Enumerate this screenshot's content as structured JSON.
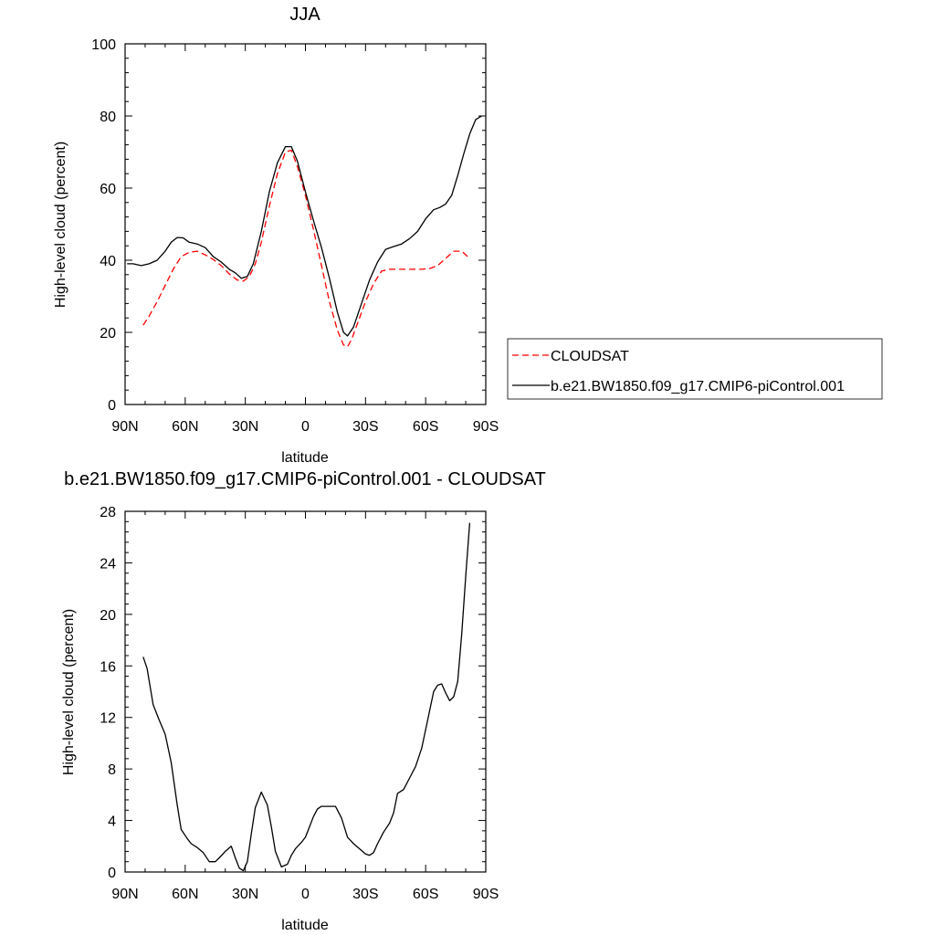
{
  "chart_data": [
    {
      "type": "line",
      "title": "JJA",
      "xlabel": "latitude",
      "ylabel": "High-level cloud (percent)",
      "xlim": [
        90,
        -90
      ],
      "ylim": [
        0,
        100
      ],
      "xticks": [
        90,
        60,
        30,
        0,
        -30,
        -60,
        -90
      ],
      "xtick_labels": [
        "90N",
        "60N",
        "30N",
        "0",
        "30S",
        "60S",
        "90S"
      ],
      "yticks": [
        0,
        20,
        40,
        60,
        80,
        100
      ],
      "ytick_labels": [
        "0",
        "20",
        "40",
        "60",
        "80",
        "100"
      ],
      "grid": false,
      "legend_position": "right",
      "series": [
        {
          "name": "CLOUDSAT",
          "color": "#ff0000",
          "dash": "dashed",
          "x": [
            81,
            78,
            74,
            70,
            66,
            62,
            58,
            54,
            50,
            46,
            42,
            38,
            34,
            31,
            28,
            25,
            22,
            18,
            14,
            10,
            7,
            4,
            0,
            -4,
            -8,
            -12,
            -16,
            -19,
            -21,
            -23,
            -26,
            -30,
            -34,
            -38,
            -42,
            -46,
            -50,
            -54,
            -58,
            -62,
            -66,
            -70,
            -74,
            -78,
            -82
          ],
          "y": [
            22,
            24.5,
            28.5,
            33,
            37.5,
            41,
            42.2,
            42.5,
            41.5,
            40.2,
            38.5,
            36.2,
            34.5,
            34.2,
            35.5,
            39,
            45,
            55,
            64,
            70,
            70.5,
            66,
            58,
            48.5,
            38.5,
            28.5,
            20.5,
            16.5,
            16,
            18,
            22.5,
            28.5,
            33.5,
            37,
            37.5,
            37.5,
            37.5,
            37.5,
            37.5,
            37.7,
            38.5,
            40.5,
            42.5,
            42.5,
            40.5
          ]
        },
        {
          "name": "b.e21.BW1850.f09_g17.CMIP6-piControl.001",
          "color": "#000000",
          "dash": "solid",
          "x": [
            89,
            86,
            82,
            78,
            74,
            70,
            67,
            64,
            61,
            58,
            54,
            50,
            46,
            42,
            38,
            35,
            32,
            29,
            26,
            22,
            18,
            14,
            10,
            7,
            4,
            0,
            -4,
            -8,
            -12,
            -16,
            -19,
            -21,
            -24,
            -28,
            -32,
            -36,
            -40,
            -44,
            -48,
            -52,
            -56,
            -60,
            -64,
            -67,
            -70,
            -73,
            -76,
            -79,
            -82,
            -85,
            -88
          ],
          "y": [
            39,
            39,
            38.5,
            39,
            40,
            42.5,
            45,
            46.3,
            46.2,
            45,
            44.5,
            43.5,
            41,
            39.5,
            37.5,
            36.5,
            35,
            35.5,
            39,
            48,
            59,
            67,
            71.5,
            71.5,
            67.5,
            59,
            51,
            43.5,
            35,
            25.5,
            20,
            19,
            21.5,
            28,
            34.5,
            39.5,
            43,
            43.8,
            44.5,
            46,
            48,
            51.5,
            54,
            54.6,
            55.6,
            58,
            63.5,
            69.5,
            75,
            79,
            80
          ]
        }
      ]
    },
    {
      "type": "line",
      "title": "b.e21.BW1850.f09_g17.CMIP6-piControl.001 - CLOUDSAT",
      "xlabel": "latitude",
      "ylabel": "High-level cloud (percent)",
      "xlim": [
        90,
        -90
      ],
      "ylim": [
        0,
        28
      ],
      "xticks": [
        90,
        60,
        30,
        0,
        -30,
        -60,
        -90
      ],
      "xtick_labels": [
        "90N",
        "60N",
        "30N",
        "0",
        "30S",
        "60S",
        "90S"
      ],
      "yticks": [
        0,
        4,
        8,
        12,
        16,
        20,
        24,
        28
      ],
      "ytick_labels": [
        "0",
        "4",
        "8",
        "12",
        "16",
        "20",
        "24",
        "28"
      ],
      "grid": false,
      "series": [
        {
          "color": "#000000",
          "dash": "solid",
          "x": [
            81,
            79,
            76,
            73,
            70,
            67,
            64,
            62,
            59,
            57,
            54,
            51,
            48,
            45,
            43,
            40,
            37,
            35,
            33,
            31,
            29,
            27,
            25,
            22,
            19,
            17,
            15,
            12,
            9,
            7,
            5,
            2,
            0,
            -2,
            -4,
            -6,
            -8,
            -10,
            -12,
            -15,
            -18,
            -21,
            -24,
            -27,
            -30,
            -32,
            -34,
            -36,
            -39,
            -42,
            -44,
            -46,
            -49,
            -52,
            -55,
            -58,
            -61,
            -64,
            -66,
            -68,
            -70,
            -72,
            -74,
            -76,
            -78,
            -80,
            -82
          ],
          "y": [
            16.7,
            15.8,
            13,
            11.8,
            10.7,
            8.5,
            5.2,
            3.3,
            2.6,
            2.2,
            1.9,
            1.5,
            0.8,
            0.8,
            1.1,
            1.6,
            2,
            1.1,
            0.3,
            0.1,
            0.8,
            3,
            5,
            6.2,
            5.2,
            3.5,
            1.6,
            0.4,
            0.6,
            1.3,
            1.8,
            2.3,
            2.7,
            3.5,
            4.3,
            4.9,
            5.1,
            5.1,
            5.1,
            5.1,
            4.2,
            2.7,
            2.2,
            1.8,
            1.4,
            1.3,
            1.5,
            2.2,
            3.1,
            3.8,
            4.6,
            6.1,
            6.4,
            7.3,
            8.2,
            9.6,
            11.8,
            14,
            14.5,
            14.6,
            13.9,
            13.3,
            13.6,
            14.8,
            18.5,
            23,
            27.1
          ]
        }
      ]
    }
  ]
}
